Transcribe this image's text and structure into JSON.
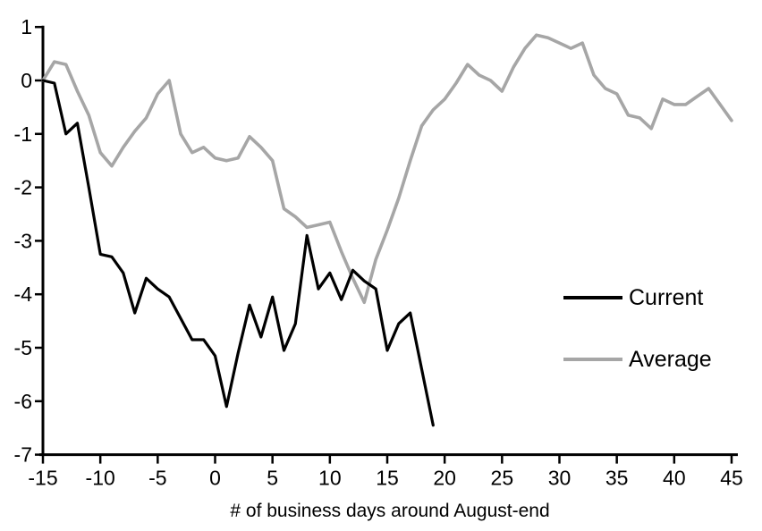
{
  "chart_data": {
    "type": "line",
    "title": "",
    "xlabel": "# of business days around August-end",
    "ylabel": "",
    "xlim": [
      -15,
      45
    ],
    "ylim": [
      -7,
      1
    ],
    "grid": false,
    "legend_position": "right-middle",
    "x_ticks": [
      -15,
      -10,
      -5,
      0,
      5,
      10,
      15,
      20,
      25,
      30,
      35,
      40,
      45
    ],
    "y_ticks": [
      1,
      0,
      -1,
      -2,
      -3,
      -4,
      -5,
      -6,
      -7
    ],
    "axis_color": "#000000",
    "series": [
      {
        "name": "Current",
        "color": "#000000",
        "stroke_width": 3.2,
        "x": [
          -15,
          -14,
          -13,
          -12,
          -11,
          -10,
          -9,
          -8,
          -7,
          -6,
          -5,
          -4,
          -3,
          -2,
          -1,
          0,
          1,
          2,
          3,
          4,
          5,
          6,
          7,
          8,
          9,
          10,
          11,
          12,
          13,
          14,
          15,
          16,
          17,
          18,
          19
        ],
        "values": [
          0,
          -0.05,
          -1.0,
          -0.8,
          -2.0,
          -3.25,
          -3.3,
          -3.6,
          -4.35,
          -3.7,
          -3.9,
          -4.05,
          -4.45,
          -4.85,
          -4.85,
          -5.15,
          -6.1,
          -5.1,
          -4.2,
          -4.8,
          -4.05,
          -5.05,
          -4.55,
          -2.9,
          -3.9,
          -3.6,
          -4.1,
          -3.55,
          -3.75,
          -3.9,
          -5.05,
          -4.55,
          -4.35,
          -5.4,
          -6.45
        ]
      },
      {
        "name": "Average",
        "color": "#a6a6a6",
        "stroke_width": 3.6,
        "x": [
          -15,
          -14,
          -13,
          -12,
          -11,
          -10,
          -9,
          -8,
          -7,
          -6,
          -5,
          -4,
          -3,
          -2,
          -1,
          0,
          1,
          2,
          3,
          4,
          5,
          6,
          7,
          8,
          9,
          10,
          11,
          12,
          13,
          14,
          15,
          16,
          17,
          18,
          19,
          20,
          21,
          22,
          23,
          24,
          25,
          26,
          27,
          28,
          29,
          30,
          31,
          32,
          33,
          34,
          35,
          36,
          37,
          38,
          39,
          40,
          41,
          42,
          43,
          44,
          45
        ],
        "values": [
          0,
          0.35,
          0.3,
          -0.2,
          -0.65,
          -1.35,
          -1.6,
          -1.25,
          -0.95,
          -0.7,
          -0.25,
          0.0,
          -1.0,
          -1.35,
          -1.25,
          -1.45,
          -1.5,
          -1.45,
          -1.05,
          -1.25,
          -1.5,
          -2.4,
          -2.55,
          -2.75,
          -2.7,
          -2.65,
          -3.2,
          -3.7,
          -4.15,
          -3.35,
          -2.8,
          -2.2,
          -1.5,
          -0.85,
          -0.55,
          -0.35,
          -0.05,
          0.3,
          0.1,
          0.0,
          -0.2,
          0.25,
          0.6,
          0.85,
          0.8,
          0.7,
          0.6,
          0.7,
          0.1,
          -0.15,
          -0.25,
          -0.65,
          -0.7,
          -0.9,
          -0.35,
          -0.45,
          -0.45,
          -0.3,
          -0.15,
          -0.45,
          -0.75
        ]
      }
    ]
  }
}
